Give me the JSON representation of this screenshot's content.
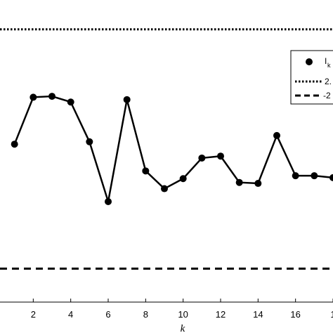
{
  "chart_data": {
    "type": "line",
    "xlabel": "k",
    "xticks": [
      "2",
      "4",
      "6",
      "8",
      "10",
      "12",
      "14",
      "16",
      "1"
    ],
    "xlim": [
      0,
      18.3
    ],
    "ylim": [
      -3.1,
      3.3
    ],
    "grid": false,
    "legend": {
      "placement": "top-right",
      "entries": [
        "I",
        "2.",
        "-2"
      ],
      "subscripts": [
        "k",
        "",
        ""
      ]
    },
    "series": [
      {
        "name": "I",
        "style": "solid-with-markers",
        "x": [
          1,
          2,
          3,
          4,
          5,
          6,
          7,
          8,
          9,
          10,
          11,
          12,
          13,
          14,
          15,
          16,
          17,
          18
        ],
        "y": [
          0.2,
          1.18,
          1.2,
          1.08,
          0.25,
          -1.0,
          1.13,
          -0.36,
          -0.73,
          -0.52,
          -0.09,
          -0.05,
          -0.6,
          -0.62,
          0.38,
          -0.46,
          -0.46,
          -0.5
        ]
      },
      {
        "name": "2.",
        "style": "dotted",
        "y": 2.6
      },
      {
        "name": "-2",
        "style": "dashed",
        "y": -2.4
      }
    ]
  }
}
